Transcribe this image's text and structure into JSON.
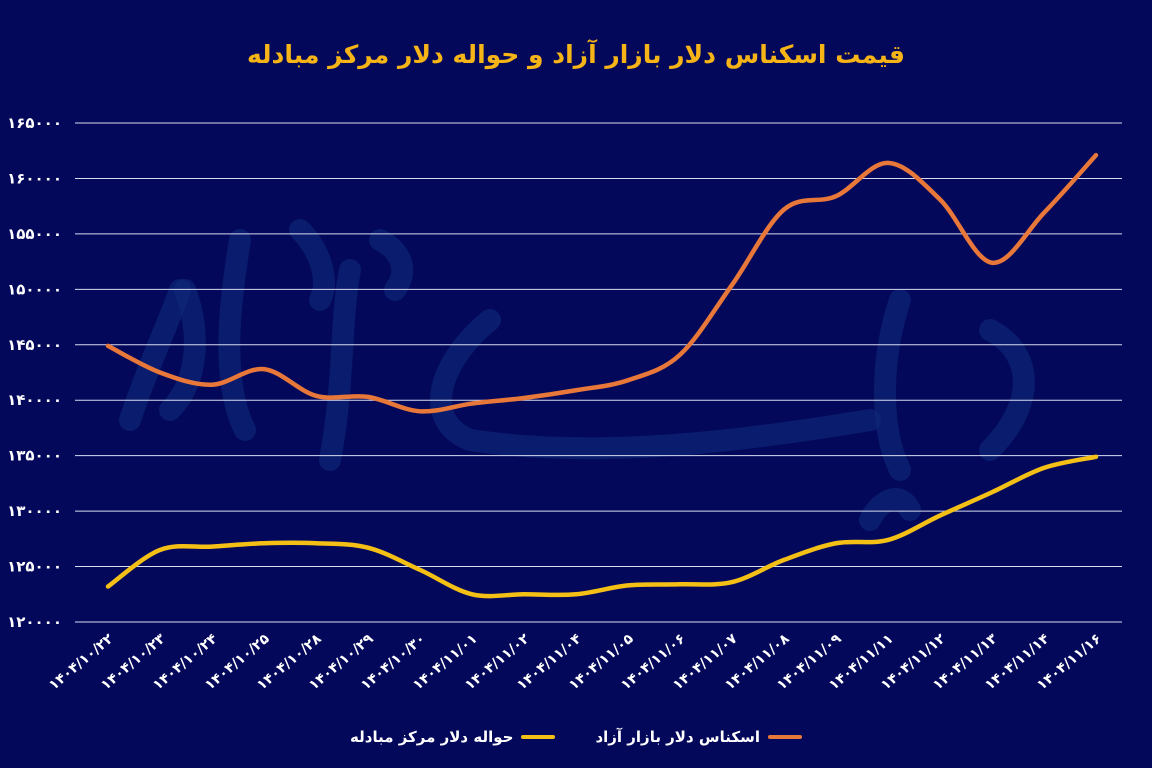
{
  "chart_data": {
    "type": "line",
    "title": "قیمت اسکناس دلار بازار آزاد و حواله دلار مرکز مبادله",
    "xlabel": "",
    "ylabel": "",
    "ylim": [
      120000,
      165000
    ],
    "yticks": [
      120000,
      125000,
      130000,
      135000,
      140000,
      145000,
      150000,
      155000,
      160000,
      165000
    ],
    "ytick_labels": [
      "۱۲۰۰۰۰",
      "۱۲۵۰۰۰",
      "۱۳۰۰۰۰",
      "۱۳۵۰۰۰",
      "۱۴۰۰۰۰",
      "۱۴۵۰۰۰",
      "۱۵۰۰۰۰",
      "۱۵۵۰۰۰",
      "۱۶۰۰۰۰",
      "۱۶۵۰۰۰"
    ],
    "grid": true,
    "legend_position": "bottom",
    "categories": [
      "۱۴۰۴/۱۰/۲۲",
      "۱۴۰۴/۱۰/۲۳",
      "۱۴۰۴/۱۰/۲۴",
      "۱۴۰۴/۱۰/۲۵",
      "۱۴۰۴/۱۰/۲۸",
      "۱۴۰۴/۱۰/۲۹",
      "۱۴۰۴/۱۰/۳۰",
      "۱۴۰۴/۱۱/۰۱",
      "۱۴۰۴/۱۱/۰۲",
      "۱۴۰۴/۱۱/۰۴",
      "۱۴۰۴/۱۱/۰۵",
      "۱۴۰۴/۱۱/۰۶",
      "۱۴۰۴/۱۱/۰۷",
      "۱۴۰۴/۱۱/۰۸",
      "۱۴۰۴/۱۱/۰۹",
      "۱۴۰۴/۱۱/۱۱",
      "۱۴۰۴/۱۱/۱۲",
      "۱۴۰۴/۱۱/۱۳",
      "۱۴۰۴/۱۱/۱۴",
      "۱۴۰۴/۱۱/۱۶"
    ],
    "series": [
      {
        "name": "اسکناس دلار بازار آزاد",
        "color": "#e8773a",
        "values": [
          144900,
          142500,
          141400,
          142800,
          140400,
          140300,
          139000,
          139700,
          140200,
          140900,
          141800,
          144100,
          150400,
          157200,
          158400,
          161400,
          158100,
          152400,
          156900,
          162100
        ]
      },
      {
        "name": "حواله دلار مرکز مبادله",
        "color": "#f5c016",
        "values": [
          123200,
          126500,
          126800,
          127100,
          127100,
          126700,
          124700,
          122500,
          122500,
          122500,
          123300,
          123400,
          123600,
          125600,
          127100,
          127400,
          129600,
          131700,
          133900,
          134900
        ]
      }
    ]
  }
}
